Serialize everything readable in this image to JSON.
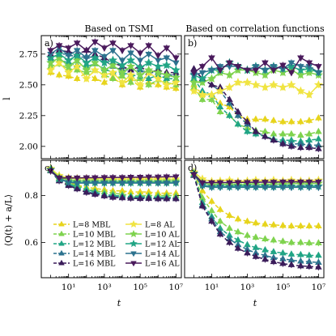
{
  "chart_data": {
    "type": "line",
    "x_scale": "log",
    "x": [
      1,
      3,
      10,
      30,
      100,
      300,
      1000,
      3000,
      10000,
      30000,
      100000,
      300000,
      1000000,
      3000000,
      10000000
    ],
    "xlabel": "t",
    "xticks": [
      10,
      1000,
      100000,
      10000000
    ],
    "xtick_labels": [
      "10¹",
      "10³",
      "10⁵",
      "10⁷"
    ],
    "column_titles": [
      "Based on TSMI",
      "Based on correlation functions"
    ],
    "colors": {
      "L=8": "#e7d41c",
      "L=10": "#7fd34e",
      "L=12": "#21a585",
      "L=14": "#2c728e",
      "L=16": "#3b1c5a",
      "AL=8": "#f0e442",
      "AL=10": "#b5de2b",
      "AL=16": "#4a1a5c"
    },
    "legend": {
      "placement": "lower-left",
      "columns": [
        [
          "L=8 MBL",
          "L=10 MBL",
          "L=12 MBL",
          "L=14 MBL",
          "L=16 MBL"
        ],
        [
          "L=8 AL",
          "L=10 AL",
          "L=12 AL",
          "L=14 AL",
          "L=16 AL"
        ]
      ]
    },
    "panels": [
      {
        "label": "a)",
        "ylabel": "l",
        "ylim": [
          1.9,
          2.9
        ],
        "yticks": [
          2.0,
          2.25,
          2.5,
          2.75
        ],
        "ytick_labels": [
          "2.00",
          "2.25",
          "2.50",
          "2.75"
        ],
        "series": [
          {
            "name": "L=8 MBL",
            "values": [
              2.6,
              2.58,
              2.57,
              2.55,
              2.6,
              2.55,
              2.52,
              2.56,
              2.5,
              2.55,
              2.48,
              2.52,
              2.5,
              2.48,
              2.47
            ]
          },
          {
            "name": "L=10 MBL",
            "values": [
              2.65,
              2.67,
              2.63,
              2.62,
              2.6,
              2.62,
              2.58,
              2.55,
              2.57,
              2.52,
              2.55,
              2.5,
              2.54,
              2.52,
              2.5
            ]
          },
          {
            "name": "L=12 MBL",
            "values": [
              2.7,
              2.7,
              2.68,
              2.66,
              2.65,
              2.67,
              2.63,
              2.6,
              2.6,
              2.58,
              2.57,
              2.55,
              2.58,
              2.55,
              2.55
            ]
          },
          {
            "name": "L=14 MBL",
            "values": [
              2.72,
              2.75,
              2.75,
              2.72,
              2.73,
              2.72,
              2.7,
              2.65,
              2.62,
              2.62,
              2.62,
              2.6,
              2.6,
              2.58,
              2.58
            ]
          },
          {
            "name": "L=16 MBL",
            "values": [
              2.75,
              2.78,
              2.77,
              2.75,
              2.78,
              2.75,
              2.72,
              2.68,
              2.65,
              2.62,
              2.65,
              2.6,
              2.62,
              2.6,
              2.6
            ]
          },
          {
            "name": "L=8 AL",
            "values": [
              2.62,
              2.68,
              2.6,
              2.65,
              2.55,
              2.62,
              2.58,
              2.6,
              2.52,
              2.58,
              2.5,
              2.6,
              2.55,
              2.5,
              2.52
            ]
          },
          {
            "name": "L=10 AL",
            "values": [
              2.68,
              2.72,
              2.65,
              2.7,
              2.62,
              2.68,
              2.62,
              2.66,
              2.6,
              2.65,
              2.58,
              2.62,
              2.6,
              2.58,
              2.56
            ]
          },
          {
            "name": "L=12 AL",
            "values": [
              2.72,
              2.75,
              2.7,
              2.74,
              2.68,
              2.72,
              2.68,
              2.7,
              2.66,
              2.7,
              2.64,
              2.68,
              2.65,
              2.66,
              2.62
            ]
          },
          {
            "name": "L=14 AL",
            "values": [
              2.75,
              2.8,
              2.74,
              2.78,
              2.72,
              2.78,
              2.73,
              2.78,
              2.7,
              2.76,
              2.7,
              2.75,
              2.7,
              2.72,
              2.68
            ]
          },
          {
            "name": "L=16 AL",
            "values": [
              2.78,
              2.82,
              2.8,
              2.84,
              2.78,
              2.85,
              2.8,
              2.84,
              2.78,
              2.82,
              2.76,
              2.82,
              2.74,
              2.8,
              2.72
            ]
          }
        ]
      },
      {
        "label": "b)",
        "ylim": [
          1.9,
          2.9
        ],
        "yticks": [
          2.0,
          2.25,
          2.5,
          2.75
        ],
        "ytick_labels": [],
        "series": [
          {
            "name": "L=8 MBL",
            "values": [
              2.5,
              2.42,
              2.42,
              2.35,
              2.32,
              2.25,
              2.22,
              2.22,
              2.22,
              2.21,
              2.2,
              2.2,
              2.2,
              2.21,
              2.23
            ]
          },
          {
            "name": "L=10 MBL",
            "values": [
              2.48,
              2.38,
              2.38,
              2.28,
              2.25,
              2.18,
              2.15,
              2.13,
              2.12,
              2.1,
              2.1,
              2.1,
              2.09,
              2.1,
              2.12
            ]
          },
          {
            "name": "L=12 MBL",
            "values": [
              2.55,
              2.45,
              2.42,
              2.32,
              2.25,
              2.18,
              2.12,
              2.1,
              2.08,
              2.06,
              2.05,
              2.05,
              2.04,
              2.05,
              2.06
            ]
          },
          {
            "name": "L=14 MBL",
            "values": [
              2.62,
              2.55,
              2.5,
              2.45,
              2.35,
              2.25,
              2.18,
              2.12,
              2.08,
              2.05,
              2.03,
              2.02,
              2.02,
              2.01,
              2.01
            ]
          },
          {
            "name": "L=16 MBL",
            "values": [
              2.63,
              2.55,
              2.5,
              2.48,
              2.38,
              2.28,
              2.2,
              2.12,
              2.08,
              2.05,
              2.02,
              2.0,
              1.99,
              1.99,
              1.98
            ]
          },
          {
            "name": "L=8 AL",
            "values": [
              2.45,
              2.42,
              2.42,
              2.45,
              2.48,
              2.52,
              2.52,
              2.5,
              2.48,
              2.5,
              2.48,
              2.5,
              2.45,
              2.42,
              2.5
            ]
          },
          {
            "name": "L=10 AL",
            "values": [
              2.52,
              2.52,
              2.55,
              2.6,
              2.58,
              2.62,
              2.62,
              2.6,
              2.58,
              2.62,
              2.6,
              2.62,
              2.58,
              2.6,
              2.58
            ]
          },
          {
            "name": "L=12 AL",
            "values": [
              2.58,
              2.55,
              2.62,
              2.62,
              2.68,
              2.65,
              2.62,
              2.65,
              2.62,
              2.65,
              2.63,
              2.65,
              2.62,
              2.63,
              2.6
            ]
          },
          {
            "name": "L=14 AL",
            "values": [
              2.58,
              2.6,
              2.62,
              2.65,
              2.65,
              2.65,
              2.62,
              2.65,
              2.62,
              2.65,
              2.63,
              2.68,
              2.65,
              2.65,
              2.6
            ]
          },
          {
            "name": "L=16 AL",
            "values": [
              2.6,
              2.65,
              2.72,
              2.62,
              2.68,
              2.65,
              2.62,
              2.62,
              2.68,
              2.62,
              2.66,
              2.6,
              2.72,
              2.68,
              2.65
            ]
          }
        ]
      },
      {
        "label": "c)",
        "ylabel": "⟨Q(t) + a/L⟩",
        "ylim": [
          0.45,
          0.95
        ],
        "yticks": [
          0.6,
          0.8
        ],
        "ytick_labels": [
          "0.6",
          "0.8"
        ],
        "series": [
          {
            "name": "L=8 MBL",
            "values": [
              0.915,
              0.88,
              0.86,
              0.845,
              0.835,
              0.83,
              0.825,
              0.82,
              0.82,
              0.815,
              0.815,
              0.815,
              0.81,
              0.81,
              0.81
            ]
          },
          {
            "name": "L=10 MBL",
            "values": [
              0.91,
              0.875,
              0.855,
              0.84,
              0.83,
              0.82,
              0.815,
              0.81,
              0.805,
              0.8,
              0.8,
              0.8,
              0.8,
              0.8,
              0.8
            ]
          },
          {
            "name": "L=12 MBL",
            "values": [
              0.91,
              0.87,
              0.85,
              0.835,
              0.825,
              0.815,
              0.805,
              0.8,
              0.798,
              0.795,
              0.795,
              0.795,
              0.793,
              0.793,
              0.79
            ]
          },
          {
            "name": "L=14 MBL",
            "values": [
              0.905,
              0.865,
              0.845,
              0.83,
              0.815,
              0.81,
              0.8,
              0.795,
              0.793,
              0.79,
              0.79,
              0.79,
              0.788,
              0.788,
              0.788
            ]
          },
          {
            "name": "L=16 MBL",
            "values": [
              0.905,
              0.862,
              0.842,
              0.828,
              0.813,
              0.805,
              0.798,
              0.792,
              0.79,
              0.788,
              0.787,
              0.787,
              0.786,
              0.786,
              0.786
            ]
          },
          {
            "name": "L=8 AL",
            "values": [
              0.915,
              0.885,
              0.875,
              0.872,
              0.872,
              0.87,
              0.872,
              0.87,
              0.87,
              0.87,
              0.87,
              0.87,
              0.87,
              0.87,
              0.87
            ]
          },
          {
            "name": "L=10 AL",
            "values": [
              0.91,
              0.878,
              0.865,
              0.862,
              0.862,
              0.862,
              0.862,
              0.862,
              0.86,
              0.862,
              0.86,
              0.862,
              0.86,
              0.862,
              0.862
            ]
          },
          {
            "name": "L=12 AL",
            "values": [
              0.91,
              0.872,
              0.858,
              0.855,
              0.855,
              0.855,
              0.855,
              0.855,
              0.855,
              0.855,
              0.855,
              0.855,
              0.855,
              0.855,
              0.855
            ]
          },
          {
            "name": "L=14 AL",
            "values": [
              0.905,
              0.87,
              0.856,
              0.853,
              0.853,
              0.853,
              0.853,
              0.853,
              0.853,
              0.853,
              0.853,
              0.853,
              0.853,
              0.853,
              0.853
            ]
          },
          {
            "name": "L=16 AL",
            "values": [
              0.905,
              0.875,
              0.875,
              0.875,
              0.876,
              0.876,
              0.877,
              0.877,
              0.877,
              0.878,
              0.878,
              0.879,
              0.879,
              0.88,
              0.88
            ]
          }
        ]
      },
      {
        "label": "d)",
        "ylim": [
          0.45,
          0.95
        ],
        "yticks": [
          0.6,
          0.8
        ],
        "ytick_labels": [],
        "series": [
          {
            "name": "L=8 MBL",
            "values": [
              0.895,
              0.82,
              0.775,
              0.74,
              0.715,
              0.7,
              0.69,
              0.683,
              0.678,
              0.675,
              0.672,
              0.67,
              0.67,
              0.67,
              0.67
            ]
          },
          {
            "name": "L=10 MBL",
            "values": [
              0.89,
              0.79,
              0.735,
              0.69,
              0.66,
              0.645,
              0.63,
              0.622,
              0.615,
              0.61,
              0.605,
              0.6,
              0.6,
              0.598,
              0.598
            ]
          },
          {
            "name": "L=12 MBL",
            "values": [
              0.888,
              0.77,
              0.71,
              0.66,
              0.63,
              0.61,
              0.59,
              0.578,
              0.568,
              0.56,
              0.555,
              0.55,
              0.548,
              0.545,
              0.545
            ]
          },
          {
            "name": "L=14 MBL",
            "values": [
              0.885,
              0.76,
              0.7,
              0.645,
              0.615,
              0.59,
              0.57,
              0.555,
              0.545,
              0.535,
              0.53,
              0.525,
              0.52,
              0.518,
              0.515
            ]
          },
          {
            "name": "L=16 MBL",
            "values": [
              0.885,
              0.755,
              0.69,
              0.635,
              0.6,
              0.575,
              0.555,
              0.54,
              0.528,
              0.518,
              0.51,
              0.505,
              0.5,
              0.498,
              0.495
            ]
          },
          {
            "name": "L=8 AL",
            "values": [
              0.9,
              0.87,
              0.86,
              0.862,
              0.865,
              0.86,
              0.862,
              0.865,
              0.862,
              0.865,
              0.862,
              0.865,
              0.862,
              0.862,
              0.865
            ]
          },
          {
            "name": "L=10 AL",
            "values": [
              0.895,
              0.855,
              0.845,
              0.848,
              0.848,
              0.845,
              0.848,
              0.85,
              0.845,
              0.85,
              0.848,
              0.852,
              0.85,
              0.85,
              0.852
            ]
          },
          {
            "name": "L=12 AL",
            "values": [
              0.893,
              0.845,
              0.838,
              0.84,
              0.838,
              0.84,
              0.84,
              0.838,
              0.84,
              0.838,
              0.84,
              0.84,
              0.838,
              0.84,
              0.84
            ]
          },
          {
            "name": "L=14 AL",
            "values": [
              0.89,
              0.84,
              0.835,
              0.835,
              0.835,
              0.835,
              0.835,
              0.835,
              0.835,
              0.835,
              0.835,
              0.835,
              0.835,
              0.835,
              0.835
            ]
          },
          {
            "name": "L=16 AL",
            "values": [
              0.89,
              0.855,
              0.855,
              0.855,
              0.855,
              0.856,
              0.856,
              0.857,
              0.857,
              0.857,
              0.858,
              0.858,
              0.858,
              0.858,
              0.858
            ]
          }
        ]
      }
    ]
  }
}
